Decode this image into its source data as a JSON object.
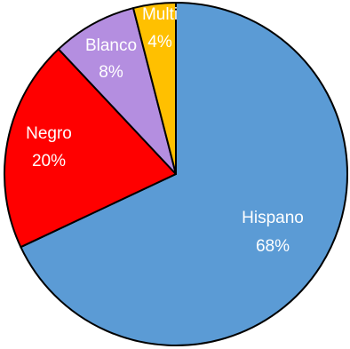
{
  "chart_data": {
    "type": "pie",
    "slices": [
      {
        "name": "Hispano",
        "value": 68,
        "value_label": "68%",
        "color": "#5b9bd5"
      },
      {
        "name": "Negro",
        "value": 20,
        "value_label": "20%",
        "color": "#ff0000"
      },
      {
        "name": "Blanco",
        "value": 8,
        "value_label": "8%",
        "color": "#b48ee0"
      },
      {
        "name": "Multi",
        "value": 4,
        "value_label": "4%",
        "color": "#ffc000"
      }
    ],
    "start": "12 o'clock",
    "direction": "clockwise",
    "labels": "inside slices, name above percentage"
  }
}
